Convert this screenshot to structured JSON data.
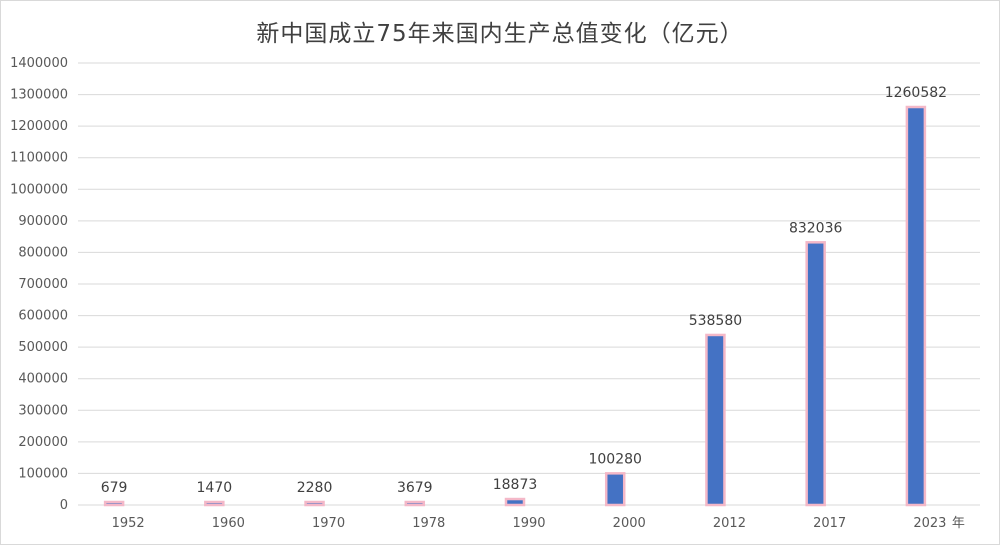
{
  "chart_data": {
    "type": "bar",
    "title": "新中国成立75年来国内生产总值变化（亿元）",
    "categories": [
      "1952",
      "1960",
      "1970",
      "1978",
      "1990",
      "2000",
      "2012",
      "2017",
      "2023"
    ],
    "x_unit": "年",
    "values": [
      679,
      1470,
      2280,
      3679,
      18873,
      100280,
      538580,
      832036,
      1260582
    ],
    "data_labels": [
      "679",
      "1470",
      "2280",
      "3679",
      "18873",
      "100280",
      "538580",
      "832036",
      "1260582"
    ],
    "y_ticks": [
      "0",
      "100000",
      "200000",
      "300000",
      "400000",
      "500000",
      "600000",
      "700000",
      "800000",
      "900000",
      "1000000",
      "1100000",
      "1200000",
      "1300000",
      "1400000"
    ],
    "ylim": [
      0,
      1400000
    ],
    "grid": true,
    "bar_color": "#4472C4",
    "bar_outline_color": "#F4B8C8"
  }
}
